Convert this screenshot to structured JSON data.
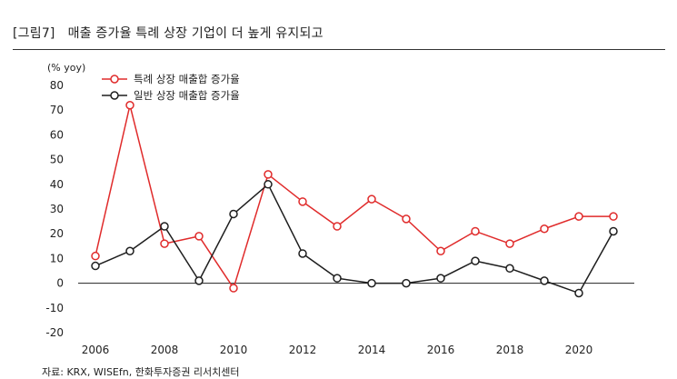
{
  "header": {
    "figure_number": "[그림7]",
    "title": "매출 증가율 특례 상장 기업이 더 높게 유지되고"
  },
  "source": "자료: KRX, WISEfn, 한화투자증권 리서치센터",
  "chart_data": {
    "type": "line",
    "unit_label": "(% yoy)",
    "x": [
      2006,
      2007,
      2008,
      2009,
      2010,
      2011,
      2012,
      2013,
      2014,
      2015,
      2016,
      2017,
      2018,
      2019,
      2020,
      2021
    ],
    "x_ticks": [
      2006,
      2008,
      2010,
      2012,
      2014,
      2016,
      2018,
      2020
    ],
    "ylim": [
      -20,
      80
    ],
    "y_ticks": [
      80,
      70,
      60,
      50,
      40,
      30,
      20,
      10,
      0,
      -10,
      -20
    ],
    "grid": false,
    "legend_position": "top-left",
    "series": [
      {
        "name": "특례 상장 매출합 증가율",
        "color": "#e02b2b",
        "values": [
          11,
          72,
          16,
          19,
          -2,
          44,
          33,
          23,
          34,
          26,
          13,
          21,
          16,
          22,
          27,
          27
        ]
      },
      {
        "name": "일반 상장 매출합 증가율",
        "color": "#1e1e1e",
        "values": [
          7,
          13,
          23,
          1,
          28,
          40,
          12,
          2,
          0,
          0,
          2,
          9,
          6,
          1,
          -4,
          21
        ]
      }
    ]
  }
}
